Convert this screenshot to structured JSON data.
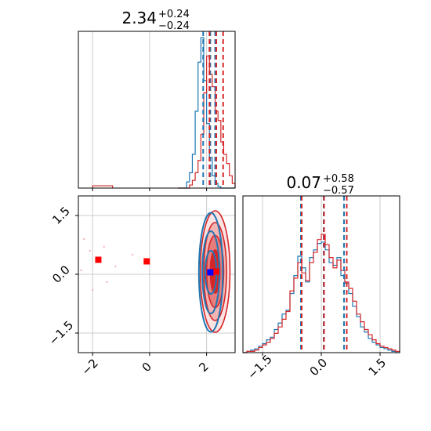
{
  "figure": {
    "colors": {
      "series_a": "#d62728",
      "series_b": "#1f77b4",
      "marker_red": "#ff0000",
      "marker_blue": "#0000ff",
      "grid": "#cccccc"
    }
  },
  "chart_data": [
    {
      "panel": "top-left",
      "type": "histogram",
      "title_value": "2.34",
      "title_plus": "+0.24",
      "title_minus": "−0.24",
      "xlim": [
        -2.5,
        3.0
      ],
      "xticks": [
        -2,
        0,
        2
      ],
      "bins": {
        "start": 1.0,
        "width": 0.1,
        "count": 20
      },
      "series": [
        {
          "color_key": "series_b",
          "counts": [
            0,
            0,
            0,
            0.04,
            0.1,
            0.22,
            0.5,
            0.82,
            0.98,
            0.7,
            0.42,
            0.2,
            0.08,
            0.03,
            0.01,
            0,
            0,
            0,
            0,
            0
          ],
          "quantiles": [
            1.88,
            2.13,
            2.3
          ]
        },
        {
          "color_key": "series_a",
          "counts": [
            0,
            0,
            0,
            0,
            0.02,
            0.05,
            0.1,
            0.18,
            0.35,
            0.62,
            0.86,
            0.74,
            0.66,
            0.5,
            0.44,
            0.3,
            0.22,
            0.16,
            0.08,
            0.03
          ],
          "quantiles": [
            2.1,
            2.34,
            2.58
          ]
        }
      ],
      "low_tail_series_a": {
        "x": [
          -2.0,
          -1.3
        ],
        "height": 0.015
      }
    },
    {
      "panel": "bottom-left",
      "type": "scatter-contour",
      "xlim": [
        -2.5,
        3.0
      ],
      "ylim": [
        -2.0,
        2.0
      ],
      "xticks": [
        "−2",
        "0",
        "2"
      ],
      "yticks": [
        "1.5",
        "0.0",
        "−1.5"
      ],
      "ytick_values": [
        1.5,
        0.0,
        -1.5
      ],
      "xtick_values": [
        -2,
        0,
        2
      ],
      "contours_series_a": {
        "center": [
          2.3,
          0.07
        ],
        "sx": [
          0.52,
          0.4,
          0.3,
          0.17
        ],
        "sy": [
          1.55,
          1.25,
          0.92,
          0.55
        ]
      },
      "contours_series_b": {
        "center": [
          2.15,
          0.05
        ],
        "sx": [
          0.42,
          0.3,
          0.2
        ],
        "sy": [
          1.52,
          1.05,
          0.55
        ]
      },
      "markers": [
        {
          "x": -1.8,
          "y": 0.37,
          "color_key": "marker_red"
        },
        {
          "x": -0.1,
          "y": 0.33,
          "color_key": "marker_red"
        },
        {
          "x": 2.34,
          "y": 0.07,
          "color_key": "marker_red"
        },
        {
          "x": 2.13,
          "y": 0.05,
          "color_key": "marker_blue"
        }
      ],
      "outlier_points": [
        {
          "x": -2.3,
          "y": 0.9
        },
        {
          "x": -1.6,
          "y": 0.7
        },
        {
          "x": -2.0,
          "y": -0.4
        },
        {
          "x": -1.2,
          "y": 0.2
        },
        {
          "x": -2.1,
          "y": 0.6
        },
        {
          "x": -1.5,
          "y": -0.2
        },
        {
          "x": -0.6,
          "y": 0.5
        },
        {
          "x": -2.4,
          "y": 0.1
        }
      ]
    },
    {
      "panel": "bottom-right",
      "type": "histogram",
      "title_value": "0.07",
      "title_plus": "+0.58",
      "title_minus": "−0.57",
      "xlim": [
        -2.0,
        2.0
      ],
      "xticks": [
        "−1.5",
        "0.0",
        "1.5"
      ],
      "xtick_values": [
        -1.5,
        0.0,
        1.5
      ],
      "bins": {
        "start": -2.0,
        "width": 0.1,
        "count": 40
      },
      "series": [
        {
          "color_key": "series_b",
          "counts": [
            0.0,
            0.01,
            0.02,
            0.03,
            0.05,
            0.07,
            0.1,
            0.12,
            0.18,
            0.23,
            0.3,
            0.33,
            0.46,
            0.6,
            0.75,
            0.66,
            0.55,
            0.74,
            0.8,
            0.85,
            0.86,
            0.8,
            0.7,
            0.68,
            0.74,
            0.6,
            0.54,
            0.46,
            0.36,
            0.28,
            0.2,
            0.16,
            0.11,
            0.08,
            0.06,
            0.04,
            0.03,
            0.02,
            0.01,
            0.0
          ],
          "quantiles": [
            -0.52,
            0.06,
            0.58
          ]
        },
        {
          "color_key": "series_a",
          "counts": [
            0.0,
            0.01,
            0.01,
            0.02,
            0.04,
            0.06,
            0.08,
            0.11,
            0.15,
            0.2,
            0.26,
            0.32,
            0.48,
            0.58,
            0.7,
            0.62,
            0.56,
            0.7,
            0.78,
            0.88,
            0.92,
            0.84,
            0.74,
            0.66,
            0.72,
            0.64,
            0.55,
            0.5,
            0.4,
            0.3,
            0.24,
            0.18,
            0.14,
            0.1,
            0.07,
            0.05,
            0.04,
            0.03,
            0.02,
            0.01
          ],
          "quantiles": [
            -0.5,
            0.07,
            0.65
          ]
        }
      ]
    }
  ]
}
